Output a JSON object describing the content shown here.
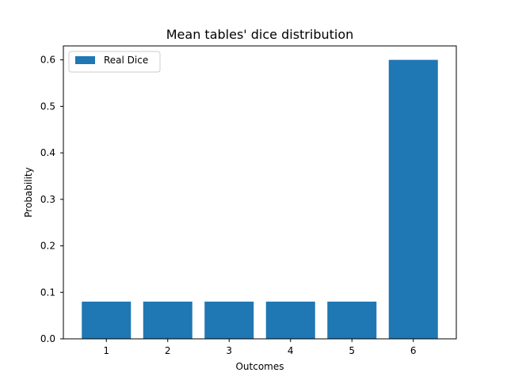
{
  "chart_data": {
    "type": "bar",
    "title": "Mean tables' dice distribution",
    "xlabel": "Outcomes",
    "ylabel": "Probability",
    "categories": [
      "1",
      "2",
      "3",
      "4",
      "5",
      "6"
    ],
    "series": [
      {
        "name": "Real Dice",
        "values": [
          0.08,
          0.08,
          0.08,
          0.08,
          0.08,
          0.6
        ],
        "color": "#1f77b4"
      }
    ],
    "ylim": [
      0,
      0.63
    ],
    "yticks": [
      "0.0",
      "0.1",
      "0.2",
      "0.3",
      "0.4",
      "0.5",
      "0.6"
    ],
    "grid": false,
    "legend_position": "top-left"
  }
}
